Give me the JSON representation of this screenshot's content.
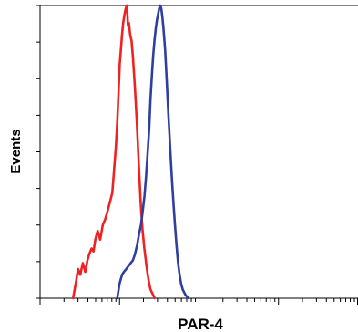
{
  "chart_data": {
    "type": "line",
    "title": "",
    "xlabel": "PAR-4",
    "ylabel": "Events",
    "x_scale": "log",
    "x_range": [
      1,
      10000
    ],
    "y_range": [
      0,
      1
    ],
    "grid": false,
    "legend": "none",
    "series": [
      {
        "color": "#ee2222",
        "x": [
          2.6,
          2.85,
          3.0,
          3.2,
          3.45,
          3.7,
          3.95,
          4.15,
          4.45,
          4.7,
          4.95,
          5.3,
          5.7,
          6.15,
          6.6,
          7.1,
          7.6,
          8.1,
          8.6,
          9.0,
          9.35,
          9.7,
          10.05,
          10.4,
          10.75,
          11.1,
          11.55,
          11.95,
          12.35,
          12.55,
          12.75,
          13.1,
          13.6,
          14.15,
          14.75,
          15.6,
          16.5,
          17.5,
          18.5,
          19.5,
          20.5,
          21.6,
          22.6,
          23.6,
          24.5,
          25.5,
          26.6,
          27.6
        ],
        "y": [
          0.0,
          0.06,
          0.1,
          0.08,
          0.12,
          0.09,
          0.13,
          0.15,
          0.17,
          0.16,
          0.2,
          0.23,
          0.2,
          0.25,
          0.27,
          0.3,
          0.33,
          0.36,
          0.45,
          0.52,
          0.6,
          0.7,
          0.8,
          0.85,
          0.9,
          0.94,
          0.97,
          0.99,
          1.0,
          0.97,
          0.93,
          0.94,
          0.9,
          0.88,
          0.82,
          0.72,
          0.6,
          0.45,
          0.32,
          0.23,
          0.17,
          0.12,
          0.08,
          0.05,
          0.03,
          0.02,
          0.01,
          0.0
        ]
      },
      {
        "color": "#2f3f9f",
        "x": [
          9.35,
          10.0,
          10.75,
          11.35,
          12.15,
          12.95,
          13.8,
          14.75,
          15.6,
          16.6,
          17.6,
          18.6,
          19.6,
          20.6,
          21.6,
          22.6,
          23.6,
          24.5,
          25.5,
          26.5,
          27.5,
          28.5,
          29.5,
          30.5,
          31.5,
          32.5,
          33.5,
          34.6,
          35.7,
          37.4,
          39.1,
          41.1,
          43.2,
          45.3,
          47.5,
          49.8,
          52.1,
          54.5,
          57.0,
          59.5,
          62.3,
          65.0,
          68.0,
          71.0,
          74.0
        ],
        "y": [
          0.0,
          0.05,
          0.08,
          0.09,
          0.1,
          0.11,
          0.12,
          0.13,
          0.15,
          0.18,
          0.22,
          0.25,
          0.3,
          0.35,
          0.42,
          0.5,
          0.58,
          0.68,
          0.76,
          0.83,
          0.88,
          0.92,
          0.95,
          0.97,
          0.99,
          1.0,
          0.99,
          0.96,
          0.92,
          0.85,
          0.75,
          0.63,
          0.52,
          0.42,
          0.33,
          0.25,
          0.18,
          0.12,
          0.08,
          0.05,
          0.03,
          0.02,
          0.01,
          0.005,
          0.0
        ]
      }
    ]
  }
}
